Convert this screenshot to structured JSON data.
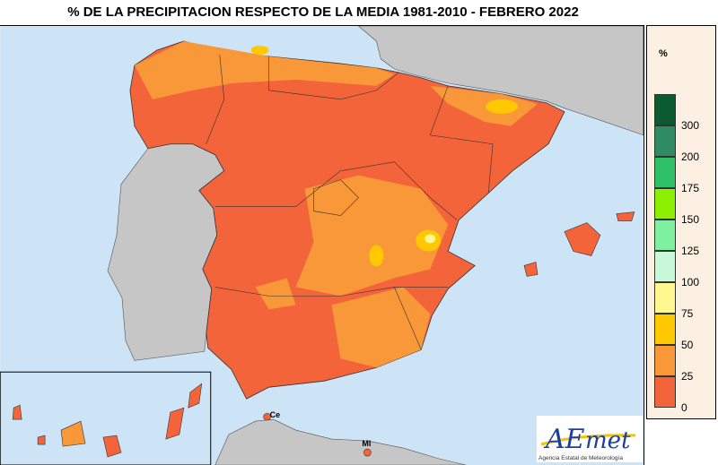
{
  "title": "% DE LA PRECIPITACION RESPECTO DE LA MEDIA 1981-2010  - FEBRERO 2022",
  "legend": {
    "unit": "%",
    "classes": [
      {
        "label": "300",
        "color": "#0b5a32"
      },
      {
        "label": "200",
        "color": "#2e8b62"
      },
      {
        "label": "175",
        "color": "#2fc068"
      },
      {
        "label": "150",
        "color": "#8cf000"
      },
      {
        "label": "125",
        "color": "#7ff0a0"
      },
      {
        "label": "100",
        "color": "#c8f8d8"
      },
      {
        "label": "75",
        "color": "#fff890"
      },
      {
        "label": "50",
        "color": "#ffc800"
      },
      {
        "label": "25",
        "color": "#f89838"
      },
      {
        "label": "0",
        "color": "#f4643a"
      }
    ]
  },
  "map": {
    "sea_color": "#cce4f6",
    "other_land_color": "#c6c6c6",
    "labels": {
      "ceuta": "Ce",
      "melilla": "Ml"
    }
  },
  "logo": {
    "name": "AEmet",
    "subtitle": "Agencia Estatal de Meteorología"
  }
}
